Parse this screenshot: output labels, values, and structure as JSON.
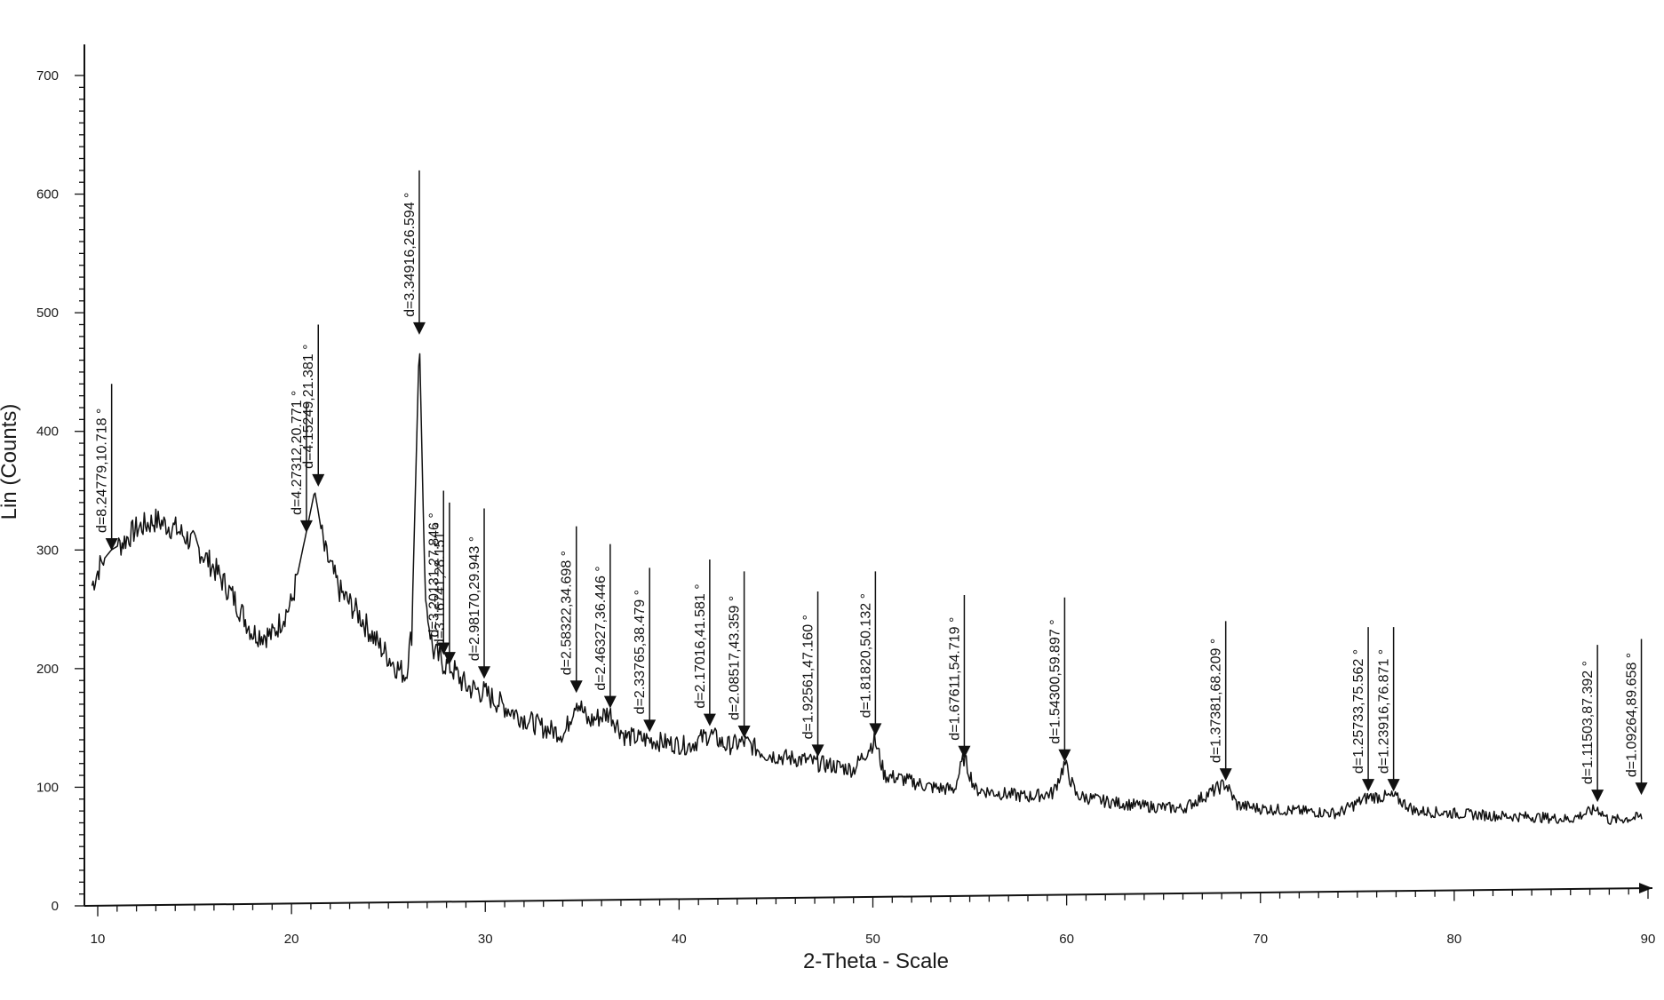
{
  "chart_data": {
    "type": "line",
    "title": "",
    "xlabel": "2-Theta - Scale",
    "ylabel": "Lin (Counts)",
    "xlim": [
      10,
      90
    ],
    "ylim": [
      0,
      700
    ],
    "x_ticks": [
      10,
      20,
      30,
      40,
      50,
      60,
      70,
      80,
      90
    ],
    "y_ticks": [
      0,
      100,
      200,
      300,
      400,
      500,
      600,
      700
    ],
    "grid": false,
    "legend": "none",
    "line_color": "#111111",
    "series": [
      {
        "x": [
          9.7,
          10.2,
          10.7,
          11.2,
          12,
          13,
          14,
          15,
          16,
          17,
          18,
          19,
          20,
          20.7,
          21.2,
          21.7,
          22.5,
          23.5,
          24.5,
          25.5,
          25.9,
          26.2,
          26.6,
          26.9,
          27.3,
          27.8,
          28.3,
          29,
          29.9,
          31,
          32,
          33,
          34.1,
          34.7,
          35.3,
          36.4,
          37.2,
          38.4,
          39.5,
          40.5,
          41.6,
          42.4,
          43.4,
          44.5,
          45.5,
          46.5,
          47.2,
          48,
          49,
          50.1,
          50.6,
          51.5,
          53,
          54.2,
          54.7,
          55.3,
          56.5,
          58,
          59.3,
          59.9,
          60.5,
          62,
          64,
          66,
          68.2,
          68.8,
          70,
          72,
          74,
          75.6,
          76.9,
          78,
          80,
          82,
          84,
          86,
          87.4,
          88,
          89.7
        ],
        "values": [
          270,
          290,
          300,
          305,
          318,
          325,
          318,
          305,
          285,
          260,
          230,
          228,
          255,
          310,
          350,
          300,
          265,
          245,
          220,
          200,
          195,
          230,
          480,
          260,
          215,
          205,
          200,
          185,
          180,
          168,
          158,
          150,
          145,
          175,
          155,
          163,
          143,
          140,
          137,
          135,
          145,
          135,
          138,
          128,
          125,
          123,
          120,
          118,
          115,
          140,
          110,
          107,
          100,
          98,
          125,
          98,
          95,
          92,
          95,
          120,
          93,
          88,
          84,
          82,
          103,
          85,
          82,
          80,
          78,
          92,
          92,
          80,
          78,
          76,
          75,
          73,
          82,
          72,
          75
        ]
      }
    ],
    "annotations": [
      {
        "x": 10.718,
        "peak_y": 298,
        "top_y": 440,
        "label": "d=8.24779,10.718 °"
      },
      {
        "x": 20.771,
        "peak_y": 313,
        "top_y": 425,
        "label": "d=4.27312,20.771 °"
      },
      {
        "x": 21.381,
        "peak_y": 352,
        "top_y": 490,
        "label": "d=4.15249,21.381 °"
      },
      {
        "x": 26.594,
        "peak_y": 480,
        "top_y": 620,
        "label": "d=3.34916,26.594 °"
      },
      {
        "x": 27.846,
        "peak_y": 210,
        "top_y": 350,
        "label": "d=3.20131,27.846 °"
      },
      {
        "x": 28.151,
        "peak_y": 202,
        "top_y": 340,
        "label": "d=3.16741,28.151 °"
      },
      {
        "x": 29.943,
        "peak_y": 190,
        "top_y": 335,
        "label": "d=2.98170,29.943 °"
      },
      {
        "x": 34.698,
        "peak_y": 178,
        "top_y": 320,
        "label": "d=2.58322,34.698 °"
      },
      {
        "x": 36.446,
        "peak_y": 165,
        "top_y": 305,
        "label": "d=2.46327,36.446 °"
      },
      {
        "x": 38.479,
        "peak_y": 145,
        "top_y": 285,
        "label": "d=2.33765,38.479 °"
      },
      {
        "x": 41.581,
        "peak_y": 150,
        "top_y": 292,
        "label": "d=2.17016,41.581 °"
      },
      {
        "x": 43.359,
        "peak_y": 140,
        "top_y": 282,
        "label": "d=2.08517,43.359 °"
      },
      {
        "x": 47.16,
        "peak_y": 124,
        "top_y": 265,
        "label": "d=1.92561,47.160 °"
      },
      {
        "x": 50.132,
        "peak_y": 142,
        "top_y": 282,
        "label": "d=1.81820,50.132 °"
      },
      {
        "x": 54.719,
        "peak_y": 123,
        "top_y": 262,
        "label": "d=1.67611,54.719 °"
      },
      {
        "x": 59.897,
        "peak_y": 120,
        "top_y": 260,
        "label": "d=1.54300,59.897 °"
      },
      {
        "x": 68.209,
        "peak_y": 104,
        "top_y": 240,
        "label": "d=1.37381,68.209 °"
      },
      {
        "x": 75.562,
        "peak_y": 95,
        "top_y": 235,
        "label": "d=1.25733,75.562 °"
      },
      {
        "x": 76.871,
        "peak_y": 95,
        "top_y": 235,
        "label": "d=1.23916,76.871 °"
      },
      {
        "x": 87.392,
        "peak_y": 86,
        "top_y": 220,
        "label": "d=1.11503,87.392 °"
      },
      {
        "x": 89.658,
        "peak_y": 92,
        "top_y": 225,
        "label": "d=1.09264,89.658 °"
      }
    ]
  }
}
